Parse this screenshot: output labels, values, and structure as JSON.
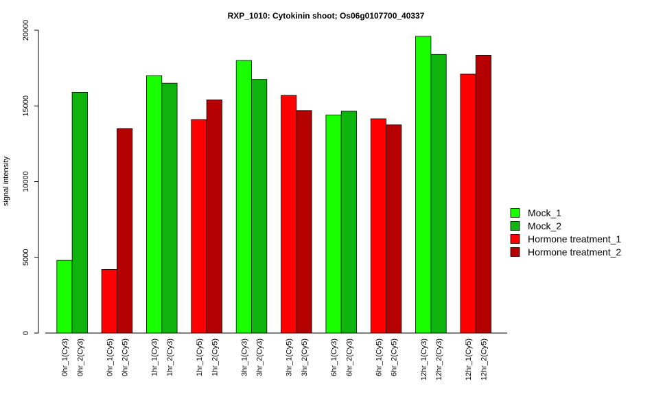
{
  "chart_data": {
    "type": "bar",
    "title": "RXP_1010: Cytokinin shoot; Os06g0107700_40337",
    "xlabel": "",
    "ylabel": "signal intensity",
    "ylim": [
      0,
      20000
    ],
    "yticks": [
      0,
      5000,
      10000,
      15000,
      20000
    ],
    "grid": false,
    "legend_position": "right",
    "legend": [
      {
        "label": "Mock_1",
        "color": "#19ff00"
      },
      {
        "label": "Mock_2",
        "color": "#0fb40f"
      },
      {
        "label": "Hormone treatment_1",
        "color": "#ff0000"
      },
      {
        "label": "Hormone treatment_2",
        "color": "#b40000"
      }
    ],
    "groups": [
      {
        "bars": [
          {
            "label": "0hr_1(Cy3)",
            "value": 4800,
            "series": "Mock_1"
          },
          {
            "label": "0hr_2(Cy3)",
            "value": 15900,
            "series": "Mock_2"
          }
        ]
      },
      {
        "bars": [
          {
            "label": "0hr_1(Cy5)",
            "value": 4200,
            "series": "Hormone treatment_1"
          },
          {
            "label": "0hr_2(Cy5)",
            "value": 13500,
            "series": "Hormone treatment_2"
          }
        ]
      },
      {
        "bars": [
          {
            "label": "1hr_1(Cy3)",
            "value": 17000,
            "series": "Mock_1"
          },
          {
            "label": "1hr_2(Cy3)",
            "value": 16500,
            "series": "Mock_2"
          }
        ]
      },
      {
        "bars": [
          {
            "label": "1hr_1(Cy5)",
            "value": 14100,
            "series": "Hormone treatment_1"
          },
          {
            "label": "1hr_2(Cy5)",
            "value": 15400,
            "series": "Hormone treatment_2"
          }
        ]
      },
      {
        "bars": [
          {
            "label": "3hr_1(Cy3)",
            "value": 18000,
            "series": "Mock_1"
          },
          {
            "label": "3hr_2(Cy3)",
            "value": 16750,
            "series": "Mock_2"
          }
        ]
      },
      {
        "bars": [
          {
            "label": "3hr_1(Cy5)",
            "value": 15700,
            "series": "Hormone treatment_1"
          },
          {
            "label": "3hr_2(Cy5)",
            "value": 14700,
            "series": "Hormone treatment_2"
          }
        ]
      },
      {
        "bars": [
          {
            "label": "6hr_1(Cy3)",
            "value": 14400,
            "series": "Mock_1"
          },
          {
            "label": "6hr_2(Cy3)",
            "value": 14650,
            "series": "Mock_2"
          }
        ]
      },
      {
        "bars": [
          {
            "label": "6hr_1(Cy5)",
            "value": 14150,
            "series": "Hormone treatment_1"
          },
          {
            "label": "6hr_2(Cy5)",
            "value": 13750,
            "series": "Hormone treatment_2"
          }
        ]
      },
      {
        "bars": [
          {
            "label": "12hr_1(Cy3)",
            "value": 19600,
            "series": "Mock_1"
          },
          {
            "label": "12hr_2(Cy3)",
            "value": 18400,
            "series": "Mock_2"
          }
        ]
      },
      {
        "bars": [
          {
            "label": "12hr_1(Cy5)",
            "value": 17100,
            "series": "Hormone treatment_1"
          },
          {
            "label": "12hr_2(Cy5)",
            "value": 18350,
            "series": "Hormone treatment_2"
          }
        ]
      }
    ]
  }
}
